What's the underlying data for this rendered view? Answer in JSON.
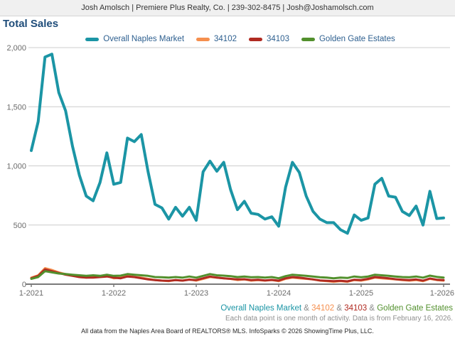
{
  "header": {
    "contact_line": "Josh Amolsch | Premiere Plus Realty, Co. | 239-302-8475 | Josh@Joshamolsch.com"
  },
  "title": "Total Sales",
  "colors": {
    "overall_naples_market": "#1b95a5",
    "zip_34102": "#f58f4e",
    "zip_34103": "#b02a21",
    "golden_gate_estates": "#52902d",
    "ampersand_gray": "#8a8a8a",
    "axis_text": "#6b6b6b",
    "gridline": "#cccccc",
    "axis_line": "#7a7a7a",
    "title_navy": "#1f4d7a"
  },
  "legend": [
    {
      "label": "Overall Naples Market",
      "color": "#1b95a5"
    },
    {
      "label": "34102",
      "color": "#f58f4e"
    },
    {
      "label": "34103",
      "color": "#b02a21"
    },
    {
      "label": "Golden Gate Estates",
      "color": "#52902d"
    }
  ],
  "chart_data": {
    "type": "line",
    "title": "Total Sales",
    "xlabel": "",
    "ylabel": "",
    "ylim": [
      0,
      2000
    ],
    "grid": "horizontal",
    "legend_position": "top-center",
    "y_ticks": [
      {
        "value": 0,
        "label": "0"
      },
      {
        "value": 500,
        "label": "500"
      },
      {
        "value": 1000,
        "label": "1,000"
      },
      {
        "value": 1500,
        "label": "1,500"
      },
      {
        "value": 2000,
        "label": "2,000"
      }
    ],
    "x_tick_labels": [
      "1-2021",
      "1-2022",
      "1-2023",
      "1-2024",
      "1-2025",
      "1-2026"
    ],
    "x_tick_indices": [
      0,
      12,
      24,
      36,
      48,
      60
    ],
    "months": [
      "1-2021",
      "2-2021",
      "3-2021",
      "4-2021",
      "5-2021",
      "6-2021",
      "7-2021",
      "8-2021",
      "9-2021",
      "10-2021",
      "11-2021",
      "12-2021",
      "1-2022",
      "2-2022",
      "3-2022",
      "4-2022",
      "5-2022",
      "6-2022",
      "7-2022",
      "8-2022",
      "9-2022",
      "10-2022",
      "11-2022",
      "12-2022",
      "1-2023",
      "2-2023",
      "3-2023",
      "4-2023",
      "5-2023",
      "6-2023",
      "7-2023",
      "8-2023",
      "9-2023",
      "10-2023",
      "11-2023",
      "12-2023",
      "1-2024",
      "2-2024",
      "3-2024",
      "4-2024",
      "5-2024",
      "6-2024",
      "7-2024",
      "8-2024",
      "9-2024",
      "10-2024",
      "11-2024",
      "12-2024",
      "1-2025",
      "2-2025",
      "3-2025",
      "4-2025",
      "5-2025",
      "6-2025",
      "7-2025",
      "8-2025",
      "9-2025",
      "10-2025",
      "11-2025",
      "12-2025",
      "1-2026"
    ],
    "series": [
      {
        "name": "34102",
        "color": "#f58f4e",
        "stroke_width": 3,
        "values": [
          55,
          75,
          135,
          120,
          100,
          85,
          75,
          60,
          55,
          60,
          65,
          70,
          50,
          55,
          70,
          60,
          55,
          45,
          35,
          30,
          25,
          35,
          30,
          40,
          30,
          45,
          60,
          55,
          50,
          45,
          35,
          40,
          30,
          35,
          30,
          35,
          25,
          45,
          55,
          50,
          45,
          40,
          30,
          25,
          20,
          25,
          20,
          35,
          30,
          40,
          55,
          50,
          45,
          40,
          35,
          30,
          35,
          25,
          45,
          35,
          30
        ]
      },
      {
        "name": "34103",
        "color": "#b02a21",
        "stroke_width": 3,
        "values": [
          50,
          70,
          125,
          110,
          95,
          80,
          70,
          60,
          55,
          55,
          60,
          65,
          55,
          50,
          65,
          60,
          50,
          40,
          35,
          30,
          28,
          35,
          30,
          38,
          35,
          50,
          65,
          55,
          50,
          45,
          40,
          42,
          35,
          38,
          32,
          36,
          30,
          50,
          60,
          55,
          48,
          40,
          32,
          28,
          25,
          28,
          24,
          38,
          35,
          45,
          60,
          55,
          50,
          42,
          38,
          34,
          40,
          30,
          48,
          38,
          34
        ]
      },
      {
        "name": "Golden Gate Estates",
        "color": "#52902d",
        "stroke_width": 3,
        "values": [
          45,
          60,
          110,
          100,
          90,
          85,
          80,
          75,
          70,
          75,
          70,
          80,
          70,
          72,
          85,
          80,
          75,
          70,
          60,
          58,
          55,
          60,
          55,
          65,
          55,
          70,
          85,
          75,
          72,
          68,
          60,
          65,
          58,
          60,
          55,
          60,
          50,
          68,
          80,
          75,
          70,
          65,
          58,
          55,
          50,
          55,
          52,
          65,
          58,
          65,
          80,
          75,
          70,
          65,
          60,
          58,
          65,
          55,
          72,
          62,
          55
        ]
      },
      {
        "name": "Overall Naples Market",
        "color": "#1b95a5",
        "stroke_width": 4,
        "values": [
          1130,
          1375,
          1920,
          1945,
          1620,
          1465,
          1165,
          920,
          745,
          705,
          860,
          1110,
          845,
          860,
          1235,
          1205,
          1265,
          950,
          675,
          645,
          550,
          650,
          575,
          650,
          540,
          950,
          1040,
          955,
          1030,
          800,
          630,
          700,
          600,
          590,
          550,
          570,
          490,
          820,
          1030,
          945,
          745,
          615,
          550,
          520,
          520,
          460,
          430,
          585,
          540,
          560,
          845,
          895,
          745,
          735,
          615,
          580,
          660,
          500,
          785,
          555,
          560
        ]
      }
    ]
  },
  "footer": {
    "separator": " & ",
    "series_line": [
      {
        "text": "Overall Naples Market",
        "color": "#1b95a5"
      },
      {
        "text": "34102",
        "color": "#f58f4e"
      },
      {
        "text": "34103",
        "color": "#b02a21"
      },
      {
        "text": "Golden Gate Estates",
        "color": "#52902d"
      }
    ],
    "note": "Each data point is one month of activity. Data is from February 16, 2026.",
    "attribution": "All data from the Naples Area Board of REALTORS® MLS. InfoSparks © 2026 ShowingTime Plus, LLC."
  }
}
